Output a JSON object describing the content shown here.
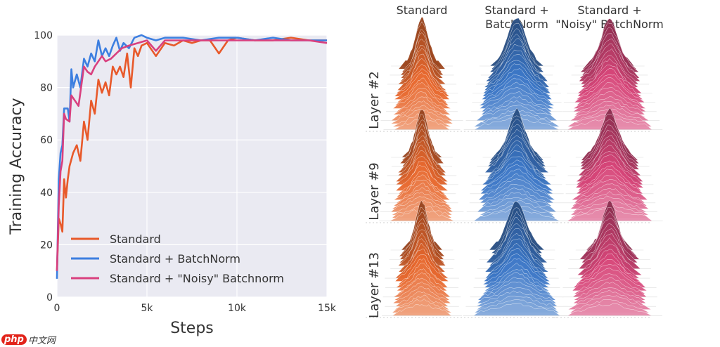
{
  "chart_data": [
    {
      "type": "line",
      "title": "",
      "xlabel": "Steps",
      "ylabel": "Training Accuracy",
      "xlim": [
        0,
        15000
      ],
      "ylim": [
        0,
        100
      ],
      "xticks": [
        0,
        5000,
        10000,
        15000
      ],
      "xtick_labels": [
        "0",
        "5k",
        "10k",
        "15k"
      ],
      "yticks": [
        0,
        20,
        40,
        60,
        80,
        100
      ],
      "ytick_labels": [
        "0",
        "20",
        "40",
        "60",
        "80",
        "100"
      ],
      "grid": true,
      "legend_position": "bottom-left",
      "series": [
        {
          "name": "Standard",
          "color": "#e8592a",
          "x": [
            0,
            100,
            200,
            300,
            400,
            500,
            600,
            700,
            900,
            1100,
            1300,
            1500,
            1700,
            1900,
            2100,
            2300,
            2500,
            2700,
            2900,
            3100,
            3300,
            3500,
            3700,
            3900,
            4100,
            4300,
            4500,
            4700,
            5000,
            5500,
            6000,
            6500,
            7000,
            7500,
            8000,
            8500,
            9000,
            9500,
            10000,
            11000,
            12000,
            13000,
            14000,
            15000
          ],
          "y": [
            10,
            30,
            28,
            25,
            45,
            38,
            45,
            50,
            55,
            58,
            52,
            67,
            60,
            75,
            70,
            83,
            78,
            82,
            77,
            88,
            85,
            88,
            84,
            93,
            80,
            95,
            92,
            96,
            97,
            92,
            97,
            96,
            98,
            97,
            98,
            98,
            93,
            98,
            99,
            98,
            98,
            99,
            98,
            98
          ]
        },
        {
          "name": "Standard + BatchNorm",
          "color": "#3d7fe0",
          "x": [
            0,
            100,
            200,
            300,
            400,
            600,
            700,
            800,
            900,
            1100,
            1300,
            1500,
            1700,
            1900,
            2100,
            2300,
            2500,
            2700,
            2900,
            3100,
            3300,
            3500,
            3700,
            4000,
            4300,
            4700,
            5000,
            5500,
            6000,
            7000,
            8000,
            9000,
            10000,
            11000,
            12000,
            13000,
            14000,
            15000
          ],
          "y": [
            7,
            45,
            55,
            58,
            72,
            72,
            67,
            87,
            80,
            85,
            80,
            91,
            88,
            93,
            90,
            98,
            92,
            95,
            92,
            96,
            99,
            94,
            97,
            95,
            99,
            100,
            99,
            98,
            99,
            99,
            98,
            99,
            99,
            98,
            99,
            98,
            98,
            98
          ]
        },
        {
          "name": "Standard + \"Noisy\" Batchnorm",
          "color": "#d9407f",
          "x": [
            0,
            100,
            200,
            300,
            400,
            500,
            700,
            800,
            1000,
            1200,
            1500,
            1700,
            1900,
            2100,
            2300,
            2500,
            2700,
            3000,
            3300,
            3600,
            4000,
            4500,
            5000,
            5500,
            6000,
            7000,
            8000,
            9000,
            10000,
            11000,
            12000,
            13000,
            14000,
            15000
          ],
          "y": [
            10,
            35,
            48,
            52,
            70,
            68,
            67,
            77,
            75,
            73,
            88,
            86,
            85,
            88,
            90,
            92,
            90,
            91,
            93,
            95,
            96,
            97,
            98,
            94,
            98,
            98,
            98,
            98,
            98,
            98,
            98,
            98,
            98,
            97
          ]
        }
      ]
    },
    {
      "type": "ridgeline-grid",
      "columns": [
        "Standard",
        "Standard +\nBatchNorm",
        "Standard +\n\"Noisy\" BatchNorm"
      ],
      "column_title_lines": [
        [
          "Standard"
        ],
        [
          "Standard +",
          "BatchNorm"
        ],
        [
          "Standard +",
          "\"Noisy\" BatchNorm"
        ]
      ],
      "rows": [
        "Layer #2",
        "Layer #9",
        "Layer #13"
      ],
      "colors": [
        "#e8692f",
        "#3d78c8",
        "#d8477a"
      ]
    }
  ],
  "watermark": {
    "logo": "php",
    "text": "中文网"
  }
}
